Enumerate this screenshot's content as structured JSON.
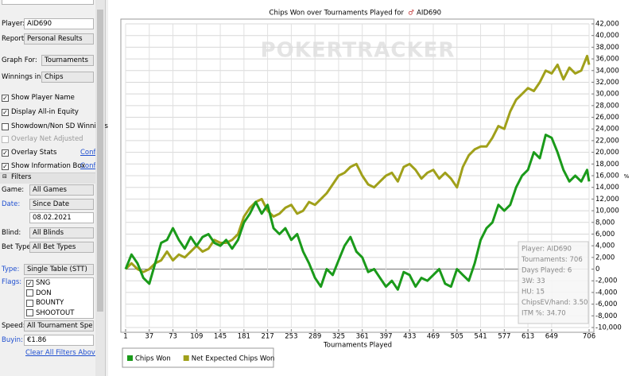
{
  "sidebar": {
    "player_label": "Player:",
    "player": "AID690",
    "report_label": "Report:",
    "report": "Personal Results",
    "graph_for_label": "Graph For:",
    "graph_for": "Tournaments",
    "winnings_label": "Winnings in:",
    "winnings": "Chips",
    "options": [
      {
        "label": "Show Player Name",
        "checked": true
      },
      {
        "label": "Display All-in Equity",
        "checked": true
      },
      {
        "label": "Showdown/Non SD Winnings",
        "checked": false
      },
      {
        "label": "Overlay Net Adjusted",
        "checked": false,
        "enabled": false
      },
      {
        "label": "Overlay Stats",
        "checked": true,
        "link": "Confi"
      },
      {
        "label": "Show Information Box",
        "checked": true,
        "link": "Confi"
      }
    ],
    "filters_title": "Filters",
    "game_label": "Game:",
    "game": "All Games",
    "date_label": "Date:",
    "date": "Since Date",
    "date_value": "08.02.2021",
    "blind_label": "Blind:",
    "blind": "All Blinds",
    "bet_type_label": "Bet Type:",
    "bet_type": "All Bet Types",
    "type_label": "Type:",
    "type": "Single Table (STT)",
    "flags_label": "Flags:",
    "flags": [
      {
        "label": "SNG",
        "checked": true
      },
      {
        "label": "DON",
        "checked": false
      },
      {
        "label": "BOUNTY",
        "checked": false
      },
      {
        "label": "SHOOTOUT",
        "checked": false
      }
    ],
    "speed_label": "Speed:",
    "speed": "All Tournament Speeds",
    "buyin_label": "Buyin:",
    "buyin": "€1.86",
    "clear_link": "Clear All Filters Above"
  },
  "chart_data": {
    "type": "line",
    "title": "Chips Won over Tournaments Played for",
    "title_player": "AID690",
    "watermark": "POKERTRACKER",
    "xlabel": "Tournaments Played",
    "ylabel": "%",
    "x": [
      1,
      10,
      19,
      28,
      37,
      46,
      55,
      64,
      73,
      82,
      91,
      100,
      109,
      118,
      127,
      136,
      145,
      154,
      163,
      172,
      181,
      190,
      199,
      208,
      217,
      226,
      235,
      244,
      253,
      262,
      271,
      280,
      289,
      298,
      307,
      316,
      325,
      334,
      343,
      352,
      361,
      370,
      379,
      388,
      397,
      406,
      415,
      424,
      433,
      442,
      451,
      460,
      469,
      478,
      487,
      496,
      505,
      514,
      523,
      532,
      541,
      550,
      559,
      568,
      577,
      586,
      595,
      604,
      613,
      622,
      631,
      640,
      649,
      658,
      667,
      676,
      685,
      694,
      703,
      706
    ],
    "series": [
      {
        "name": "Chips Won",
        "color": "#1a9a1a",
        "values": [
          0,
          2500,
          1000,
          -1500,
          -2500,
          1000,
          4500,
          5000,
          7000,
          5000,
          3500,
          5500,
          4000,
          5500,
          6000,
          4500,
          4000,
          5000,
          3500,
          5000,
          8000,
          9500,
          11500,
          9500,
          11000,
          7000,
          6000,
          7000,
          5000,
          6000,
          3000,
          1000,
          -1500,
          -3000,
          0,
          -1000,
          1500,
          4000,
          5500,
          3000,
          2000,
          -500,
          0,
          -1500,
          -3000,
          -2000,
          -3500,
          -500,
          -1000,
          -3000,
          -1500,
          -2000,
          -1000,
          0,
          -2500,
          -3000,
          0,
          -1000,
          -2000,
          1000,
          5000,
          7000,
          8000,
          11000,
          10000,
          11000,
          14000,
          16000,
          17000,
          20000,
          19000,
          23000,
          22500,
          20000,
          17000,
          15000,
          16000,
          15000,
          17000,
          15000
        ]
      },
      {
        "name": "Net Expected Chips Won",
        "color": "#a0a01a",
        "values": [
          0,
          1000,
          0,
          -500,
          0,
          1000,
          1500,
          3000,
          1500,
          2500,
          2000,
          3000,
          4000,
          3000,
          3500,
          5000,
          4500,
          4500,
          5000,
          6000,
          9000,
          10500,
          11500,
          12000,
          10000,
          9000,
          9500,
          10500,
          11000,
          9500,
          10000,
          11500,
          11000,
          12000,
          13000,
          14500,
          16000,
          16500,
          17500,
          18000,
          16000,
          14500,
          14000,
          15000,
          16000,
          16500,
          15000,
          17500,
          18000,
          17000,
          15500,
          16500,
          17000,
          15500,
          16500,
          15500,
          14000,
          17500,
          19500,
          20500,
          21000,
          21000,
          22500,
          24500,
          24000,
          27000,
          29000,
          30000,
          31000,
          30500,
          32000,
          34000,
          33500,
          35000,
          32500,
          34500,
          33500,
          34000,
          36500,
          35000
        ]
      }
    ],
    "xlim": [
      1,
      706
    ],
    "xticks": [
      1,
      37,
      73,
      109,
      145,
      181,
      217,
      253,
      289,
      325,
      361,
      397,
      433,
      469,
      505,
      541,
      577,
      613,
      649,
      706
    ],
    "ylim": [
      -10000,
      42000
    ],
    "yticks": [
      {
        "value": -10000,
        "label": "-10,000"
      },
      {
        "value": -8000,
        "label": "-8,000"
      },
      {
        "value": -6000,
        "label": "-6,000"
      },
      {
        "value": -4000,
        "label": "-4,000"
      },
      {
        "value": -2000,
        "label": "-2,000"
      },
      0,
      {
        "value": 2000,
        "label": "2,000"
      },
      {
        "value": 4000,
        "label": "4,000"
      },
      {
        "value": 6000,
        "label": "6,000"
      },
      {
        "value": 8000,
        "label": "8,000"
      },
      {
        "value": 10000,
        "label": "10,000"
      },
      {
        "value": 12000,
        "label": "12,000"
      },
      {
        "value": 14000,
        "label": "14,000"
      },
      {
        "value": 16000,
        "label": "16,000"
      },
      {
        "value": 18000,
        "label": "18,000"
      },
      {
        "value": 20000,
        "label": "20,000"
      },
      {
        "value": 22000,
        "label": "22,000"
      },
      {
        "value": 24000,
        "label": "24,000"
      },
      {
        "value": 26000,
        "label": "26,000"
      },
      {
        "value": 28000,
        "label": "28,000"
      },
      {
        "value": 30000,
        "label": "30,000"
      },
      {
        "value": 32000,
        "label": "32,000"
      },
      {
        "value": 34000,
        "label": "34,000"
      },
      {
        "value": 36000,
        "label": "36,000"
      },
      {
        "value": 38000,
        "label": "38,000"
      },
      {
        "value": 40000,
        "label": "40,000"
      },
      {
        "value": 42000,
        "label": "42,000"
      }
    ],
    "grid": true,
    "stats_box": [
      "Player: AID690",
      "Tournaments: 706",
      "Days Played: 6",
      "3W: 33",
      "HU: 15",
      "ChipsEV/hand: 3.50",
      "ITM %: 34.70"
    ]
  }
}
